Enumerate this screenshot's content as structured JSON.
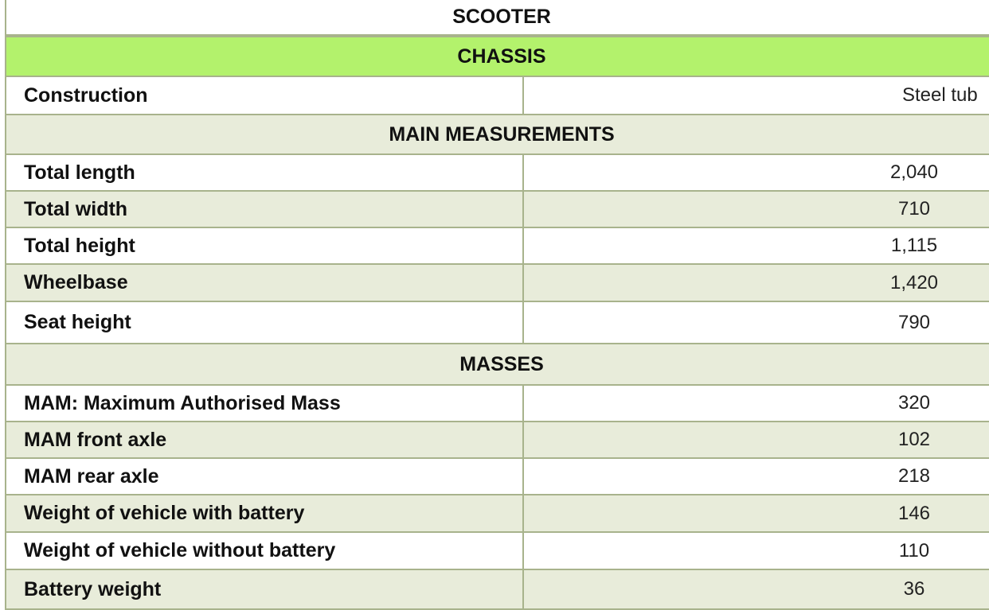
{
  "table": {
    "title": "SCOOTER",
    "rows": [
      {
        "section": "CHASSIS"
      },
      {
        "label": "Construction",
        "value": "Steel tub"
      },
      {
        "section": "MAIN MEASUREMENTS"
      },
      {
        "label": "Total length",
        "value": "2,040"
      },
      {
        "label": "Total width",
        "value": "710"
      },
      {
        "label": "Total height",
        "value": "1,115"
      },
      {
        "label": "Wheelbase",
        "value": "1,420"
      },
      {
        "label": "Seat height",
        "value": "790"
      },
      {
        "section": "MASSES"
      },
      {
        "label": "MAM: Maximum Authorised Mass",
        "value": "320"
      },
      {
        "label": "MAM front axle",
        "value": "102"
      },
      {
        "label": "MAM rear axle",
        "value": "218"
      },
      {
        "label": "Weight of vehicle with battery",
        "value": "146"
      },
      {
        "label": "Weight of vehicle without battery",
        "value": "110"
      },
      {
        "label": "Battery weight",
        "value": "36"
      }
    ]
  }
}
